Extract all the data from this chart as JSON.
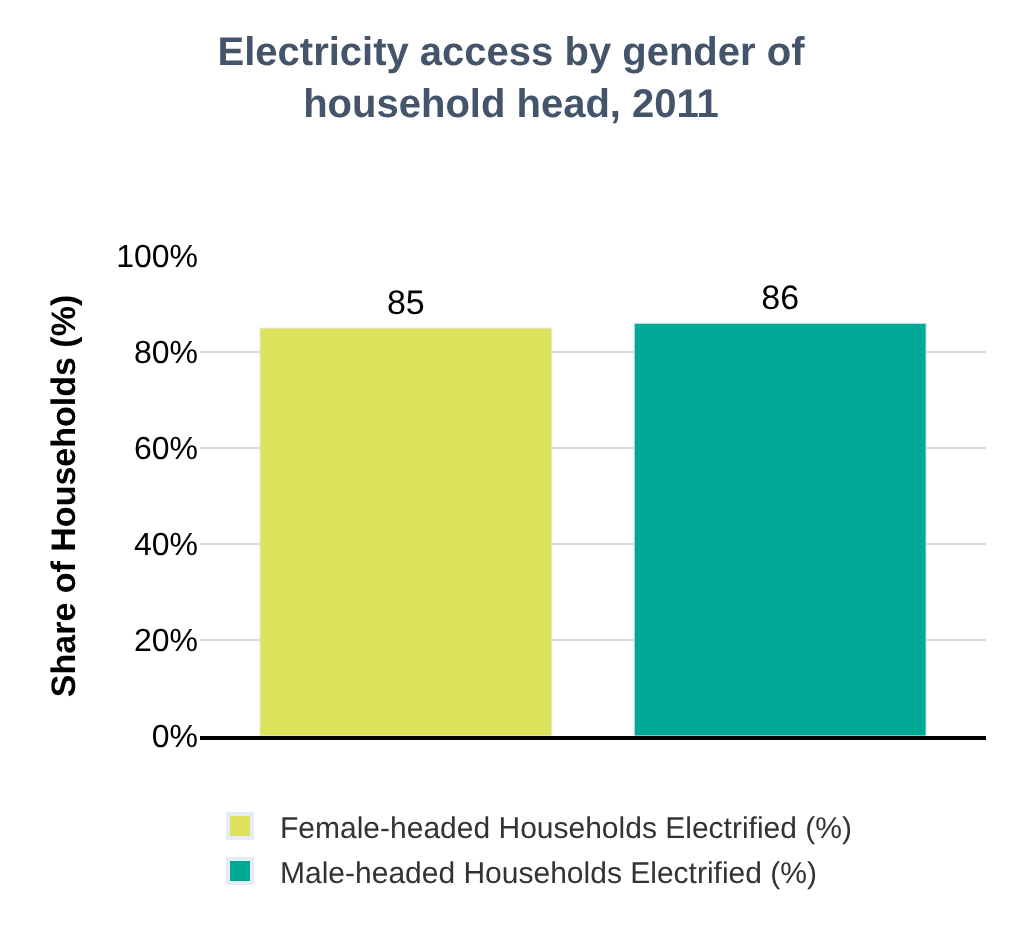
{
  "chart_data": {
    "type": "bar",
    "title": "Electricity access by gender of household head, 2011",
    "ylabel": "Share of Households (%)",
    "categories": [
      null,
      null
    ],
    "series": [
      {
        "name": "Female-headed Households Electrified (%)",
        "color": "#dce35b",
        "values": [
          85,
          null
        ]
      },
      {
        "name": "Male-headed Households Electrified (%)",
        "color": "#00a896",
        "values": [
          null,
          86
        ]
      }
    ],
    "ylim": [
      0,
      100
    ],
    "yticks": [
      {
        "value": 0,
        "label": "0%"
      },
      {
        "value": 20,
        "label": "20%"
      },
      {
        "value": 40,
        "label": "40%"
      },
      {
        "value": 60,
        "label": "60%"
      },
      {
        "value": 80,
        "label": "80%"
      },
      {
        "value": 100,
        "label": "100%"
      }
    ],
    "grid": "y",
    "legend": "bottom",
    "data_labels": true
  }
}
